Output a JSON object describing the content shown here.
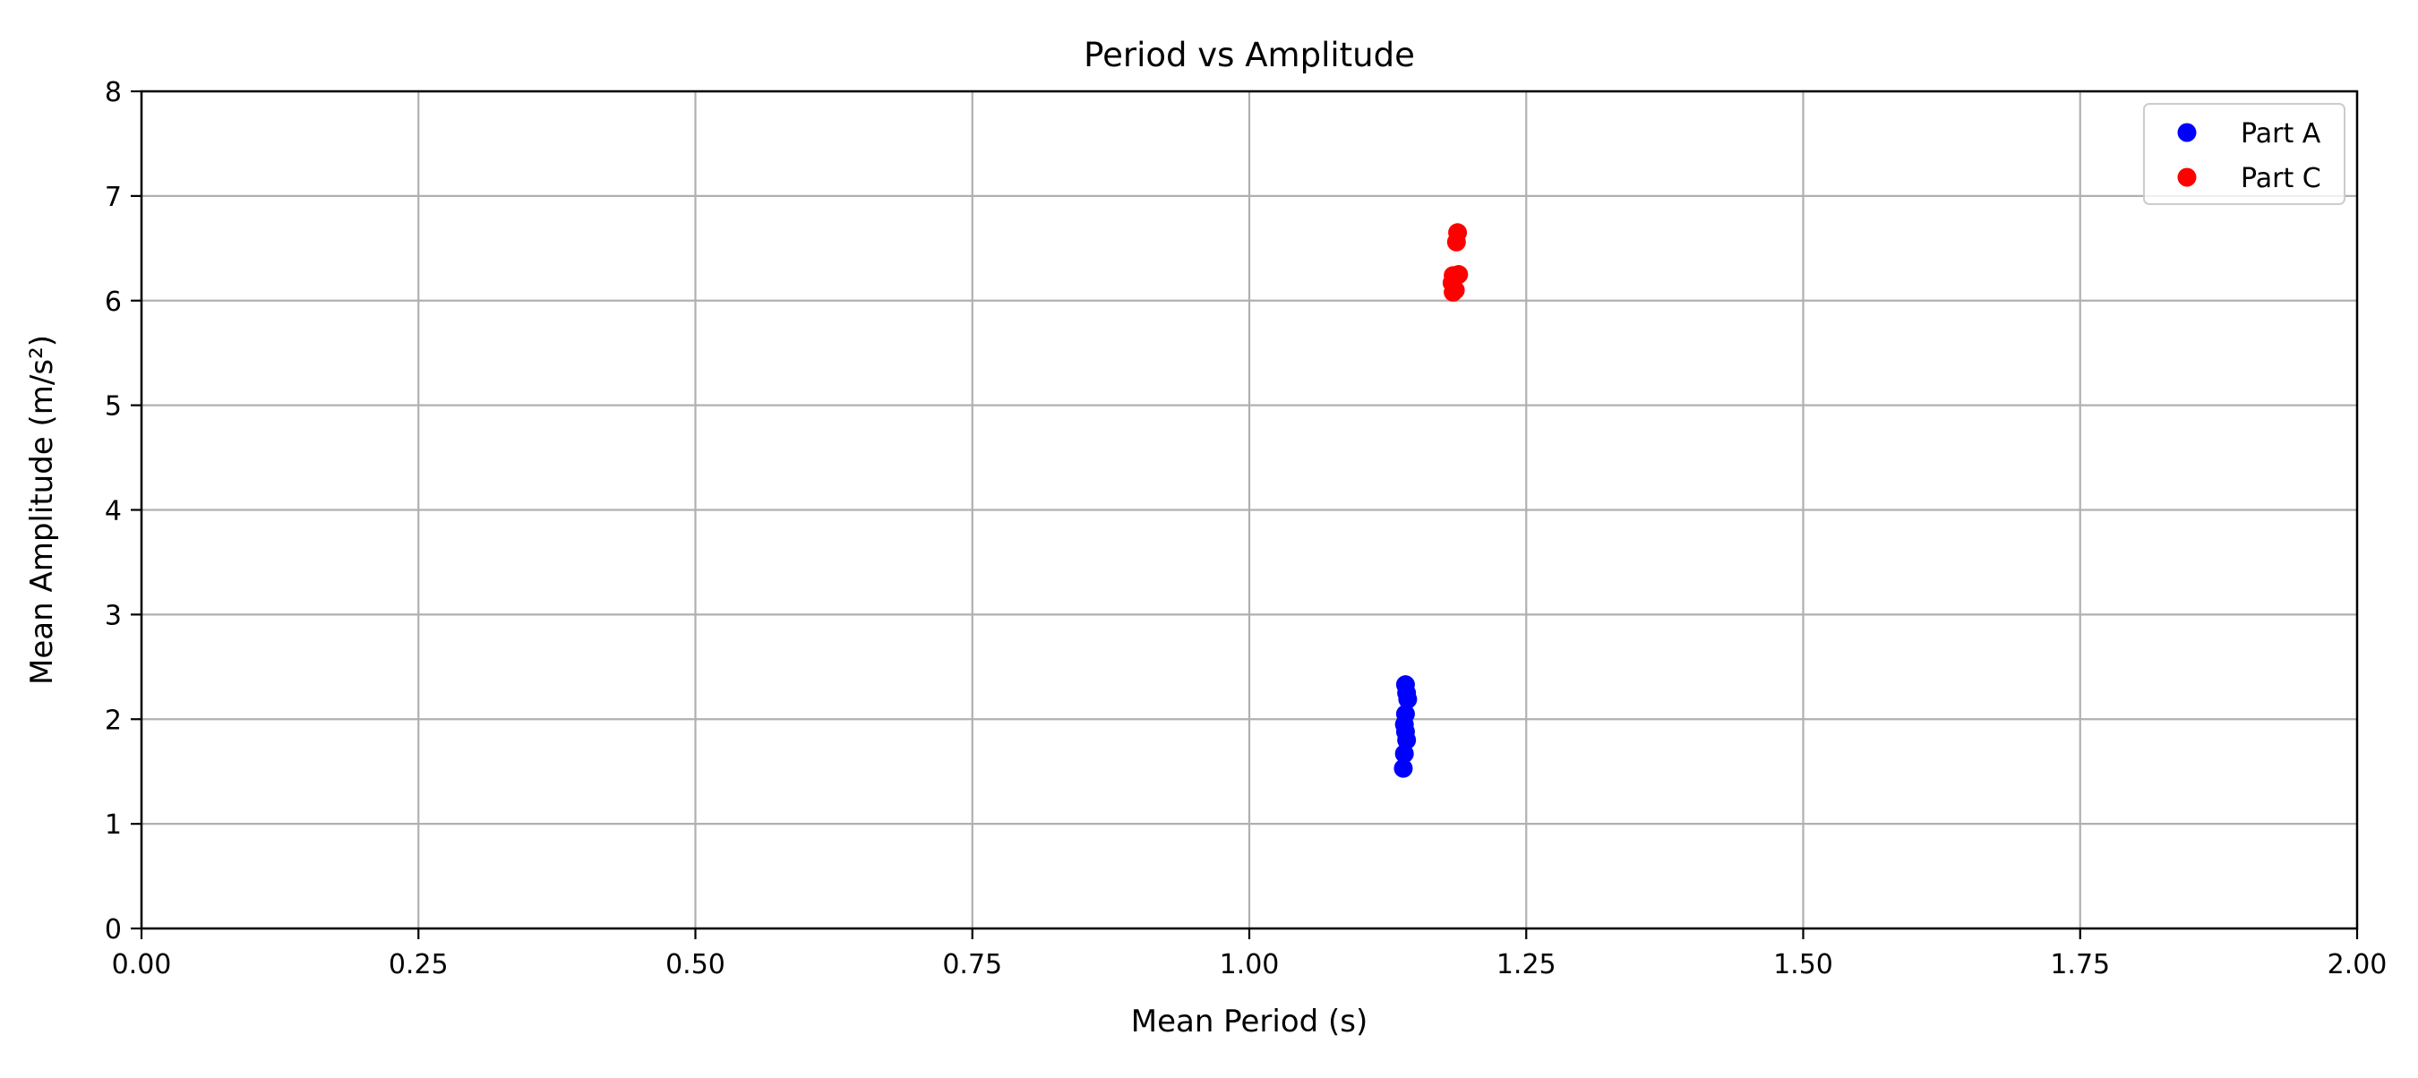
{
  "chart_data": {
    "type": "scatter",
    "title": "Period vs Amplitude",
    "xlabel": "Mean Period (s)",
    "ylabel": "Mean Amplitude (m/s²)",
    "xlim": [
      0.0,
      2.0
    ],
    "ylim": [
      0,
      8
    ],
    "xticks": [
      "0.00",
      "0.25",
      "0.50",
      "0.75",
      "1.00",
      "1.25",
      "1.50",
      "1.75",
      "2.00"
    ],
    "yticks": [
      "0",
      "1",
      "2",
      "3",
      "4",
      "5",
      "6",
      "7",
      "8"
    ],
    "grid": true,
    "legend_position": "top-right",
    "series": [
      {
        "name": "Part A",
        "color": "#0000ff",
        "points": [
          {
            "x": 1.141,
            "y": 2.33
          },
          {
            "x": 1.142,
            "y": 2.25
          },
          {
            "x": 1.143,
            "y": 2.19
          },
          {
            "x": 1.141,
            "y": 2.05
          },
          {
            "x": 1.14,
            "y": 1.95
          },
          {
            "x": 1.141,
            "y": 1.88
          },
          {
            "x": 1.142,
            "y": 1.8
          },
          {
            "x": 1.14,
            "y": 1.67
          },
          {
            "x": 1.139,
            "y": 1.53
          }
        ]
      },
      {
        "name": "Part C",
        "color": "#ff0000",
        "points": [
          {
            "x": 1.188,
            "y": 6.65
          },
          {
            "x": 1.187,
            "y": 6.56
          },
          {
            "x": 1.184,
            "y": 6.24
          },
          {
            "x": 1.189,
            "y": 6.25
          },
          {
            "x": 1.183,
            "y": 6.17
          },
          {
            "x": 1.186,
            "y": 6.1
          },
          {
            "x": 1.184,
            "y": 6.08
          }
        ]
      }
    ]
  }
}
